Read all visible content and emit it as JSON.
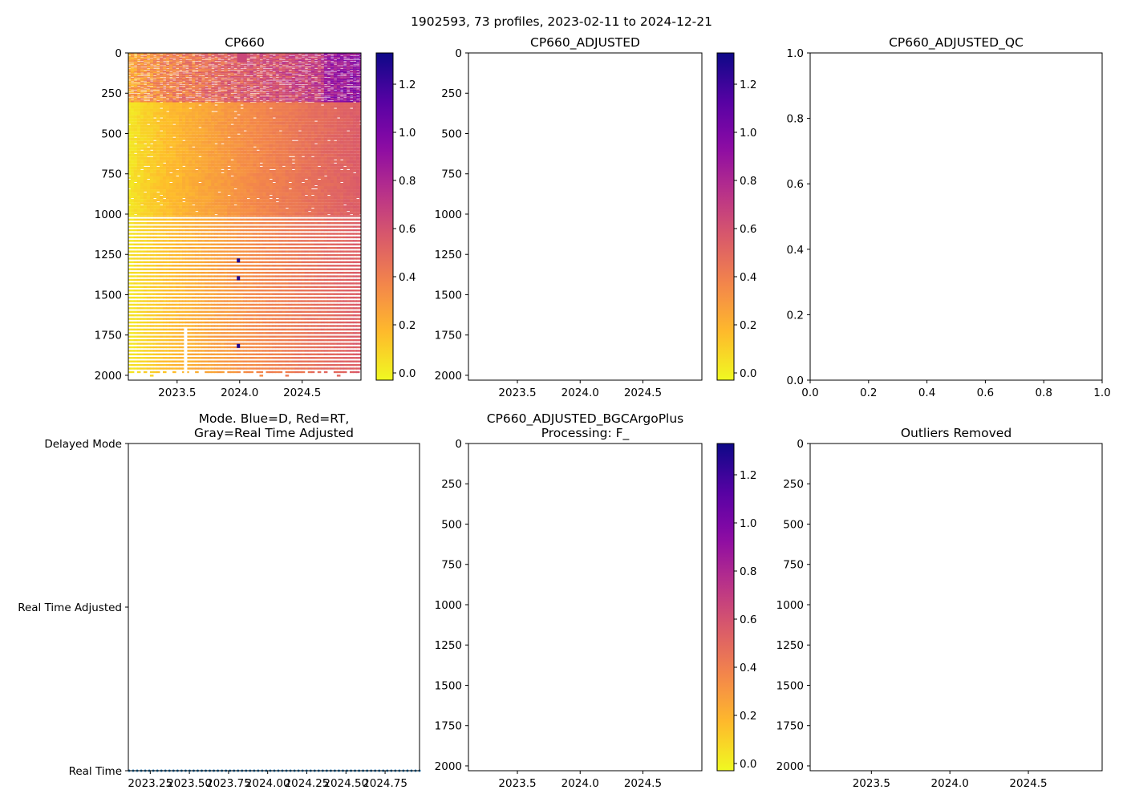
{
  "figure": {
    "suptitle": "1902593, 73 profiles, 2023-02-11 to 2024-12-21"
  },
  "colors": {
    "axis": "#000000",
    "mode_dots": "#1f77b4",
    "colormap": "plasma_r"
  },
  "chart_data": [
    {
      "id": "cp660",
      "type": "heatmap",
      "title": "CP660",
      "xlabel": "",
      "ylabel": "",
      "xlim": [
        2023.11,
        2024.97
      ],
      "ylim": [
        2030,
        0
      ],
      "xticks": [
        2023.5,
        2024.0,
        2024.5
      ],
      "xtick_labels": [
        "2023.5",
        "2024.0",
        "2024.5"
      ],
      "yticks": [
        0,
        250,
        500,
        750,
        1000,
        1250,
        1500,
        1750,
        2000
      ],
      "ytick_labels": [
        "0",
        "250",
        "500",
        "750",
        "1000",
        "1250",
        "1500",
        "1750",
        "2000"
      ],
      "profiles": 73,
      "time_start": 2023.115,
      "time_end": 2024.97,
      "value_trend_start": 0.02,
      "value_trend_end": 0.55,
      "surface_values": [
        0.25,
        0.65,
        0.9
      ],
      "colorbar": {
        "range": [
          -0.03,
          1.33
        ],
        "ticks": [
          0.0,
          0.2,
          0.4,
          0.6,
          0.8,
          1.0,
          1.2
        ],
        "tick_labels": [
          "0.0",
          "0.2",
          "0.4",
          "0.6",
          "0.8",
          "1.0",
          "1.2"
        ]
      }
    },
    {
      "id": "cp660_adjusted",
      "type": "heatmap",
      "title": "CP660_ADJUSTED",
      "xlim": [
        2023.11,
        2024.97
      ],
      "ylim": [
        2030,
        0
      ],
      "xticks": [
        2023.5,
        2024.0,
        2024.5
      ],
      "xtick_labels": [
        "2023.5",
        "2024.0",
        "2024.5"
      ],
      "yticks": [
        0,
        250,
        500,
        750,
        1000,
        1250,
        1500,
        1750,
        2000
      ],
      "ytick_labels": [
        "0",
        "250",
        "500",
        "750",
        "1000",
        "1250",
        "1500",
        "1750",
        "2000"
      ],
      "values": [],
      "colorbar": {
        "range": [
          -0.03,
          1.33
        ],
        "ticks": [
          0.0,
          0.2,
          0.4,
          0.6,
          0.8,
          1.0,
          1.2
        ],
        "tick_labels": [
          "0.0",
          "0.2",
          "0.4",
          "0.6",
          "0.8",
          "1.0",
          "1.2"
        ]
      }
    },
    {
      "id": "cp660_adjusted_qc",
      "type": "scatter",
      "title": "CP660_ADJUSTED_QC",
      "xlim": [
        0.0,
        1.0
      ],
      "ylim": [
        0.0,
        1.0
      ],
      "xticks": [
        0.0,
        0.2,
        0.4,
        0.6,
        0.8,
        1.0
      ],
      "xtick_labels": [
        "0.0",
        "0.2",
        "0.4",
        "0.6",
        "0.8",
        "1.0"
      ],
      "yticks": [
        0.0,
        0.2,
        0.4,
        0.6,
        0.8,
        1.0
      ],
      "ytick_labels": [
        "0.0",
        "0.2",
        "0.4",
        "0.6",
        "0.8",
        "1.0"
      ],
      "values": []
    },
    {
      "id": "mode",
      "type": "scatter",
      "title_lines": [
        "Mode. Blue=D, Red=RT,",
        "Gray=Real Time Adjusted"
      ],
      "xlim": [
        2023.11,
        2024.97
      ],
      "ylim": [
        0,
        2
      ],
      "xticks": [
        2023.25,
        2023.5,
        2023.75,
        2024.0,
        2024.25,
        2024.5,
        2024.75
      ],
      "xtick_labels": [
        "2023.25",
        "2023.50",
        "2023.75",
        "2024.00",
        "2024.25",
        "2024.50",
        "2024.75"
      ],
      "yticks": [
        2,
        1,
        0
      ],
      "ytick_labels": [
        "Delayed Mode",
        "Real Time Adjusted",
        "Real Time"
      ],
      "series": [
        {
          "name": "Real Time",
          "mode_value": 0,
          "count": 73,
          "x_start": 2023.115,
          "x_end": 2024.97
        }
      ]
    },
    {
      "id": "cp660_bgcargoplus",
      "type": "heatmap",
      "title_lines": [
        "CP660_ADJUSTED_BGCArgoPlus",
        "Processing: F_"
      ],
      "xlim": [
        2023.11,
        2024.97
      ],
      "ylim": [
        2030,
        0
      ],
      "xticks": [
        2023.5,
        2024.0,
        2024.5
      ],
      "xtick_labels": [
        "2023.5",
        "2024.0",
        "2024.5"
      ],
      "yticks": [
        0,
        250,
        500,
        750,
        1000,
        1250,
        1500,
        1750,
        2000
      ],
      "ytick_labels": [
        "0",
        "250",
        "500",
        "750",
        "1000",
        "1250",
        "1500",
        "1750",
        "2000"
      ],
      "values": [],
      "colorbar": {
        "range": [
          -0.03,
          1.33
        ],
        "ticks": [
          0.0,
          0.2,
          0.4,
          0.6,
          0.8,
          1.0,
          1.2
        ],
        "tick_labels": [
          "0.0",
          "0.2",
          "0.4",
          "0.6",
          "0.8",
          "1.0",
          "1.2"
        ]
      }
    },
    {
      "id": "outliers_removed",
      "type": "heatmap",
      "title": "Outliers Removed",
      "xlim": [
        2023.11,
        2024.97
      ],
      "ylim": [
        2030,
        0
      ],
      "xticks": [
        2023.5,
        2024.0,
        2024.5
      ],
      "xtick_labels": [
        "2023.5",
        "2024.0",
        "2024.5"
      ],
      "yticks": [
        0,
        250,
        500,
        750,
        1000,
        1250,
        1500,
        1750,
        2000
      ],
      "ytick_labels": [
        "0",
        "250",
        "500",
        "750",
        "1000",
        "1250",
        "1500",
        "1750",
        "2000"
      ],
      "values": []
    }
  ]
}
